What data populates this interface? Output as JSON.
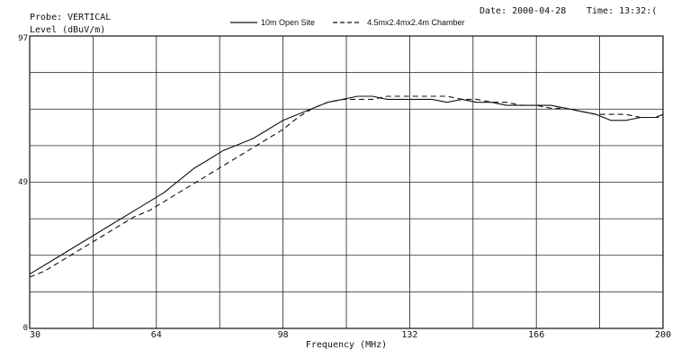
{
  "header": {
    "probe": "Probe: VERTICAL",
    "level_label": "Level (dBuV/m)",
    "date": "Date: 2000-04-28",
    "time": "Time: 13:32:("
  },
  "chart_data": {
    "type": "line",
    "xlabel": "Frequency (MHz)",
    "ylabel": "Level (dBuV/m)",
    "xlim": [
      30,
      200
    ],
    "ylim": [
      0,
      97
    ],
    "x_ticks": [
      30,
      64,
      98,
      132,
      166,
      200
    ],
    "y_ticks": [
      0,
      49,
      97
    ],
    "x_tick_labels": [
      "30",
      "64",
      "98",
      "132",
      "166",
      "200"
    ],
    "y_tick_labels": [
      "0",
      "49",
      "97"
    ],
    "grid": true,
    "legend": "top-center",
    "series": [
      {
        "name": "10m Open Site",
        "style": "solid",
        "color": "#111111",
        "x": [
          30,
          34,
          38,
          42,
          46,
          50,
          54,
          58,
          62,
          66,
          70,
          74,
          78,
          82,
          86,
          90,
          94,
          98,
          102,
          106,
          110,
          114,
          118,
          122,
          126,
          130,
          134,
          138,
          142,
          146,
          150,
          154,
          158,
          162,
          166,
          170,
          174,
          178,
          182,
          186,
          190,
          194,
          198,
          200
        ],
        "y": [
          18,
          21,
          24,
          27,
          30,
          33,
          36,
          39,
          42,
          45,
          49,
          53,
          56,
          59,
          61,
          63,
          66,
          69,
          71,
          73,
          75,
          76,
          77,
          77,
          76,
          76,
          76,
          76,
          75,
          76,
          75,
          75,
          74,
          74,
          74,
          74,
          73,
          72,
          71,
          69,
          69,
          70,
          70,
          71
        ]
      },
      {
        "name": "4.5mx2.4mx2.4m Chamber",
        "style": "dashed",
        "color": "#111111",
        "x": [
          30,
          34,
          38,
          42,
          46,
          50,
          54,
          58,
          62,
          66,
          70,
          74,
          78,
          82,
          86,
          90,
          94,
          98,
          102,
          106,
          110,
          114,
          118,
          122,
          126,
          130,
          134,
          138,
          142,
          146,
          150,
          154,
          158,
          162,
          166,
          170,
          174,
          178,
          182,
          186,
          190,
          194,
          198,
          200
        ],
        "y": [
          17,
          19,
          22,
          25,
          28,
          31,
          34,
          37,
          39,
          42,
          45,
          48,
          51,
          54,
          57,
          60,
          63,
          66,
          70,
          73,
          75,
          76,
          76,
          76,
          77,
          77,
          77,
          77,
          77,
          76,
          76,
          75,
          75,
          74,
          74,
          73,
          73,
          72,
          71,
          71,
          71,
          70,
          70,
          70
        ]
      }
    ]
  }
}
